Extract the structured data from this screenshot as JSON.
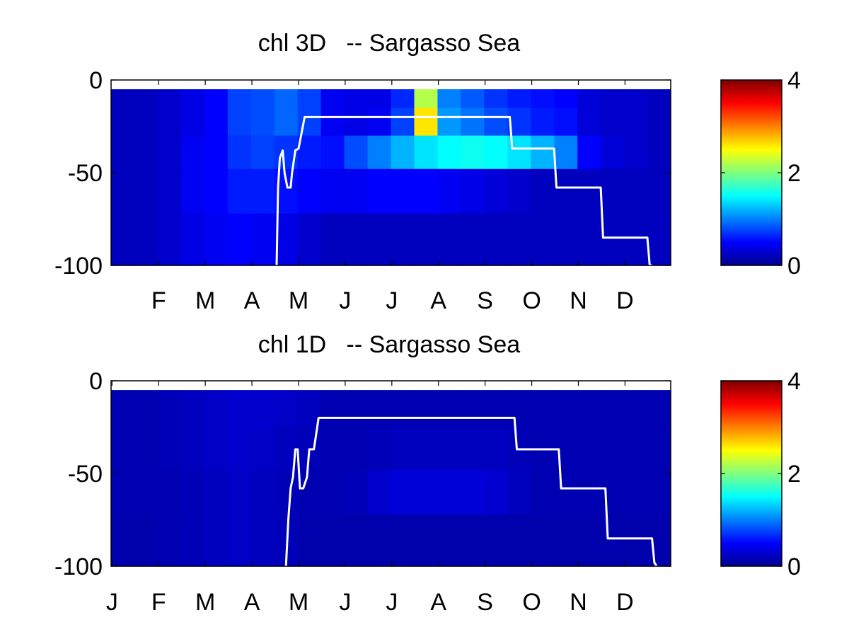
{
  "chart_data": [
    {
      "type": "heatmap",
      "title": "chl 3D   -- Sargasso Sea",
      "xlabel": "",
      "ylabel": "",
      "ylim": [
        -100,
        0
      ],
      "y_ticks": [
        0,
        -50,
        -100
      ],
      "x_tick_labels": [
        "F",
        "M",
        "A",
        "M",
        "J",
        "J",
        "A",
        "S",
        "O",
        "N",
        "D"
      ],
      "x_tick_months": [
        2,
        3,
        4,
        5,
        6,
        7,
        8,
        9,
        10,
        11,
        12
      ],
      "x_range_months": [
        1,
        13
      ],
      "colorbar": {
        "range": [
          0,
          4
        ],
        "ticks": [
          0,
          2,
          4
        ],
        "colormap": "jet"
      },
      "depth_layers": [
        {
          "top": -5,
          "bottom": -15,
          "profile": [
            0.25,
            0.25,
            0.3,
            0.4,
            0.5,
            0.75,
            0.8,
            0.9,
            0.75,
            0.45,
            0.4,
            0.4,
            0.65,
            2.2,
            1.0,
            0.85,
            0.7,
            0.6,
            0.55,
            0.5,
            0.35,
            0.3,
            0.3,
            0.25
          ]
        },
        {
          "top": -15,
          "bottom": -30,
          "profile": [
            0.25,
            0.25,
            0.3,
            0.4,
            0.5,
            0.75,
            0.8,
            0.9,
            0.75,
            0.45,
            0.4,
            0.45,
            0.75,
            2.6,
            1.1,
            0.95,
            0.8,
            0.7,
            0.6,
            0.55,
            0.35,
            0.3,
            0.3,
            0.25
          ]
        },
        {
          "top": -30,
          "bottom": -48,
          "profile": [
            0.25,
            0.25,
            0.3,
            0.45,
            0.5,
            0.7,
            0.75,
            0.7,
            0.6,
            0.55,
            0.8,
            1.0,
            1.2,
            1.4,
            1.5,
            1.55,
            1.5,
            1.4,
            1.2,
            1.0,
            0.5,
            0.35,
            0.3,
            0.25
          ]
        },
        {
          "top": -48,
          "bottom": -72,
          "profile": [
            0.25,
            0.25,
            0.3,
            0.45,
            0.5,
            0.6,
            0.6,
            0.55,
            0.5,
            0.45,
            0.45,
            0.5,
            0.5,
            0.5,
            0.45,
            0.4,
            0.35,
            0.3,
            0.25,
            0.25,
            0.25,
            0.25,
            0.25,
            0.25
          ]
        },
        {
          "top": -72,
          "bottom": -100,
          "profile": [
            0.25,
            0.25,
            0.3,
            0.4,
            0.45,
            0.5,
            0.45,
            0.4,
            0.3,
            0.25,
            0.25,
            0.25,
            0.25,
            0.25,
            0.25,
            0.25,
            0.25,
            0.25,
            0.25,
            0.25,
            0.25,
            0.25,
            0.25,
            0.25
          ]
        }
      ],
      "mixed_layer_depth": {
        "color": "#ffffff",
        "x": [
          4.55,
          4.58,
          4.62,
          4.68,
          4.72,
          4.78,
          4.85,
          4.88,
          4.95,
          5.02,
          5.15,
          5.5,
          6.0,
          7.0,
          8.0,
          9.0,
          9.55,
          9.6,
          9.62,
          10.5,
          10.55,
          10.6,
          11.5,
          11.55,
          11.6,
          12.5,
          12.55,
          12.6
        ],
        "y": [
          -100,
          -58,
          -42,
          -38,
          -50,
          -58,
          -58,
          -50,
          -38,
          -37,
          -20,
          -20,
          -20,
          -20,
          -20,
          -20,
          -20,
          -37,
          -37,
          -37,
          -58,
          -58,
          -58,
          -85,
          -85,
          -85,
          -100,
          -100
        ]
      }
    },
    {
      "type": "heatmap",
      "title": "chl 1D   -- Sargasso Sea",
      "xlabel": "",
      "ylabel": "",
      "ylim": [
        -100,
        0
      ],
      "y_ticks": [
        0,
        -50,
        -100
      ],
      "x_tick_labels": [
        "J",
        "F",
        "M",
        "A",
        "M",
        "J",
        "J",
        "A",
        "S",
        "O",
        "N",
        "D"
      ],
      "x_tick_months": [
        1,
        2,
        3,
        4,
        5,
        6,
        7,
        8,
        9,
        10,
        11,
        12
      ],
      "x_range_months": [
        1,
        13
      ],
      "colorbar": {
        "range": [
          0,
          4
        ],
        "ticks": [
          0,
          2,
          4
        ],
        "colormap": "jet"
      },
      "depth_layers": [
        {
          "top": -5,
          "bottom": -25,
          "profile": [
            0.2,
            0.2,
            0.22,
            0.25,
            0.28,
            0.3,
            0.3,
            0.28,
            0.25,
            0.2,
            0.2,
            0.2,
            0.2,
            0.2,
            0.2,
            0.2,
            0.2,
            0.2,
            0.2,
            0.2,
            0.2,
            0.2,
            0.2,
            0.2
          ]
        },
        {
          "top": -25,
          "bottom": -48,
          "profile": [
            0.2,
            0.2,
            0.22,
            0.25,
            0.28,
            0.3,
            0.28,
            0.25,
            0.22,
            0.2,
            0.2,
            0.22,
            0.25,
            0.25,
            0.25,
            0.25,
            0.25,
            0.22,
            0.2,
            0.2,
            0.2,
            0.2,
            0.2,
            0.2
          ]
        },
        {
          "top": -48,
          "bottom": -72,
          "profile": [
            0.2,
            0.2,
            0.2,
            0.22,
            0.25,
            0.28,
            0.25,
            0.22,
            0.2,
            0.2,
            0.22,
            0.3,
            0.35,
            0.35,
            0.35,
            0.35,
            0.32,
            0.25,
            0.2,
            0.2,
            0.2,
            0.2,
            0.2,
            0.2
          ]
        },
        {
          "top": -72,
          "bottom": -100,
          "profile": [
            0.18,
            0.18,
            0.2,
            0.22,
            0.25,
            0.28,
            0.25,
            0.22,
            0.18,
            0.18,
            0.18,
            0.18,
            0.18,
            0.18,
            0.18,
            0.18,
            0.18,
            0.18,
            0.18,
            0.18,
            0.18,
            0.18,
            0.18,
            0.18
          ]
        }
      ],
      "mixed_layer_depth": {
        "color": "#ffffff",
        "x": [
          4.75,
          4.8,
          4.85,
          4.9,
          4.95,
          5.0,
          5.05,
          5.12,
          5.2,
          5.25,
          5.35,
          5.45,
          6.0,
          7.0,
          8.0,
          9.0,
          9.65,
          9.7,
          9.72,
          10.6,
          10.65,
          10.7,
          11.6,
          11.65,
          11.7,
          12.6,
          12.65,
          12.7
        ],
        "y": [
          -100,
          -75,
          -58,
          -52,
          -37,
          -37,
          -58,
          -58,
          -52,
          -37,
          -37,
          -20,
          -20,
          -20,
          -20,
          -20,
          -20,
          -37,
          -37,
          -37,
          -58,
          -58,
          -58,
          -85,
          -85,
          -85,
          -98,
          -100
        ]
      }
    }
  ]
}
